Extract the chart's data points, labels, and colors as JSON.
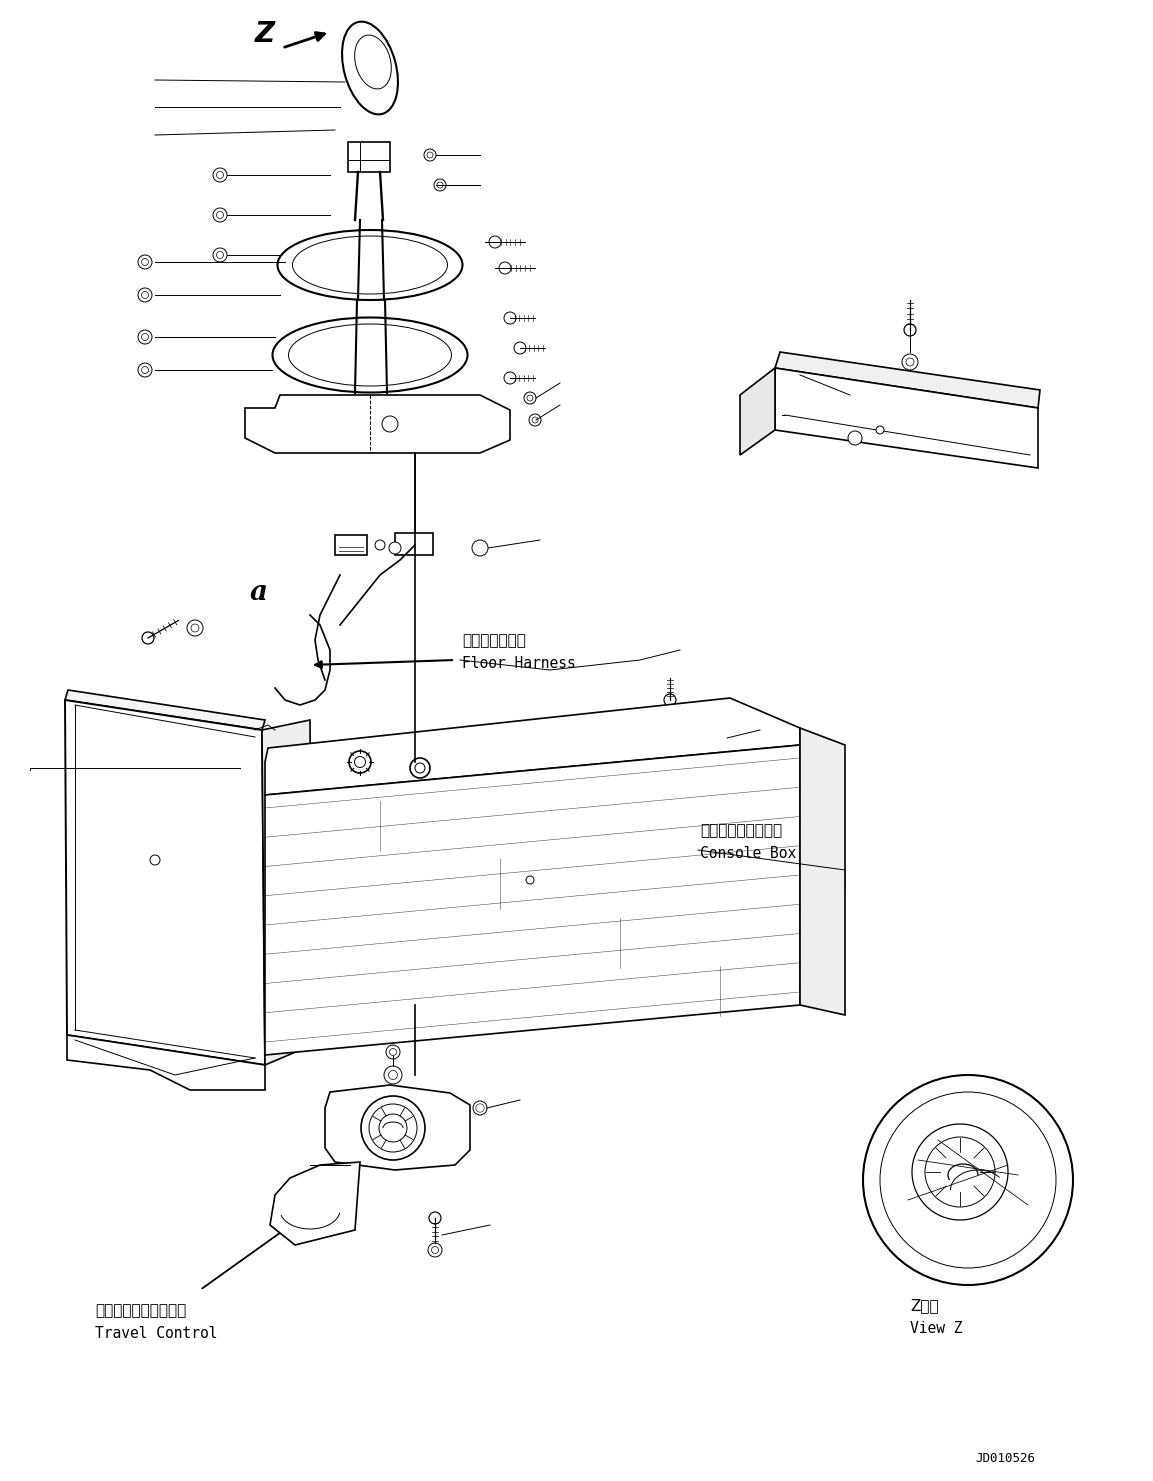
{
  "background_color": "#ffffff",
  "fig_width": 11.53,
  "fig_height": 14.81,
  "dpi": 100,
  "labels": {
    "floor_harness_jp": "フロアハーネス",
    "floor_harness_en": "Floor Harness",
    "console_box_jp": "コンソールボックス",
    "console_box_en": "Console Box",
    "travel_control_jp": "トラベルコントロール",
    "travel_control_en": "Travel Control",
    "view_z_jp": "Z　視",
    "view_z_en": "View Z",
    "drawing_number": "JD010526",
    "z_label": "Z",
    "a_label1": "a",
    "a_label2": "a"
  },
  "line_color": "#000000",
  "lw": 1.2,
  "tlw": 0.7
}
